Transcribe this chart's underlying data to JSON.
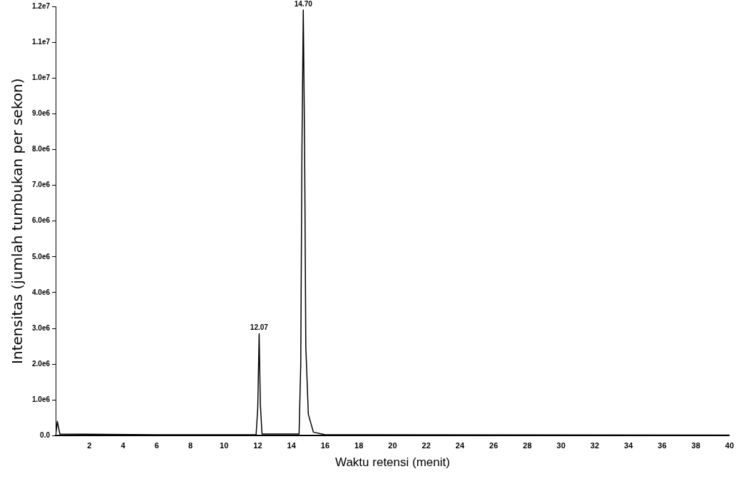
{
  "chart_data": {
    "type": "line",
    "xlabel": "Waktu retensi (menit)",
    "ylabel": "Intensitas (jumlah tumbukan per sekon)",
    "x": [
      0,
      0.1,
      0.25,
      6,
      11.9,
      12.0,
      12.08,
      12.15,
      12.25,
      14.45,
      14.55,
      14.62,
      14.7,
      14.78,
      14.85,
      15.0,
      15.3,
      16,
      40
    ],
    "series": [
      {
        "color": "#000000",
        "values": [
          0,
          400000,
          50000,
          30000,
          30000,
          800000,
          2850000,
          900000,
          50000,
          50000,
          2000000,
          8000000,
          11900000,
          8000000,
          2500000,
          600000,
          100000,
          30000,
          20000
        ]
      }
    ],
    "xlim": [
      0,
      40
    ],
    "xticks": [
      2,
      4,
      6,
      8,
      10,
      12,
      14,
      16,
      18,
      20,
      22,
      24,
      26,
      28,
      30,
      32,
      34,
      36,
      38,
      40
    ],
    "ylim": [
      0,
      12000000
    ],
    "yticks": [
      {
        "value": 0,
        "label": "0.0"
      },
      {
        "value": 1000000,
        "label": "1.0e6"
      },
      {
        "value": 2000000,
        "label": "2.0e6"
      },
      {
        "value": 3000000,
        "label": "3.0e6"
      },
      {
        "value": 4000000,
        "label": "4.0e6"
      },
      {
        "value": 5000000,
        "label": "5.0e6"
      },
      {
        "value": 6000000,
        "label": "6.0e6"
      },
      {
        "value": 7000000,
        "label": "7.0e6"
      },
      {
        "value": 8000000,
        "label": "8.0e6"
      },
      {
        "value": 9000000,
        "label": "9.0e6"
      },
      {
        "value": 10000000,
        "label": "1.0e7"
      },
      {
        "value": 11000000,
        "label": "1.1e7"
      },
      {
        "value": 12000000,
        "label": "1.2e7"
      }
    ],
    "annotations": [
      {
        "text": "12.07",
        "x": 12.08,
        "y": 2850000
      },
      {
        "text": "14.70",
        "x": 14.7,
        "y": 11900000
      }
    ],
    "grid": false,
    "legend": false,
    "marker": "none",
    "line_style": "solid"
  }
}
